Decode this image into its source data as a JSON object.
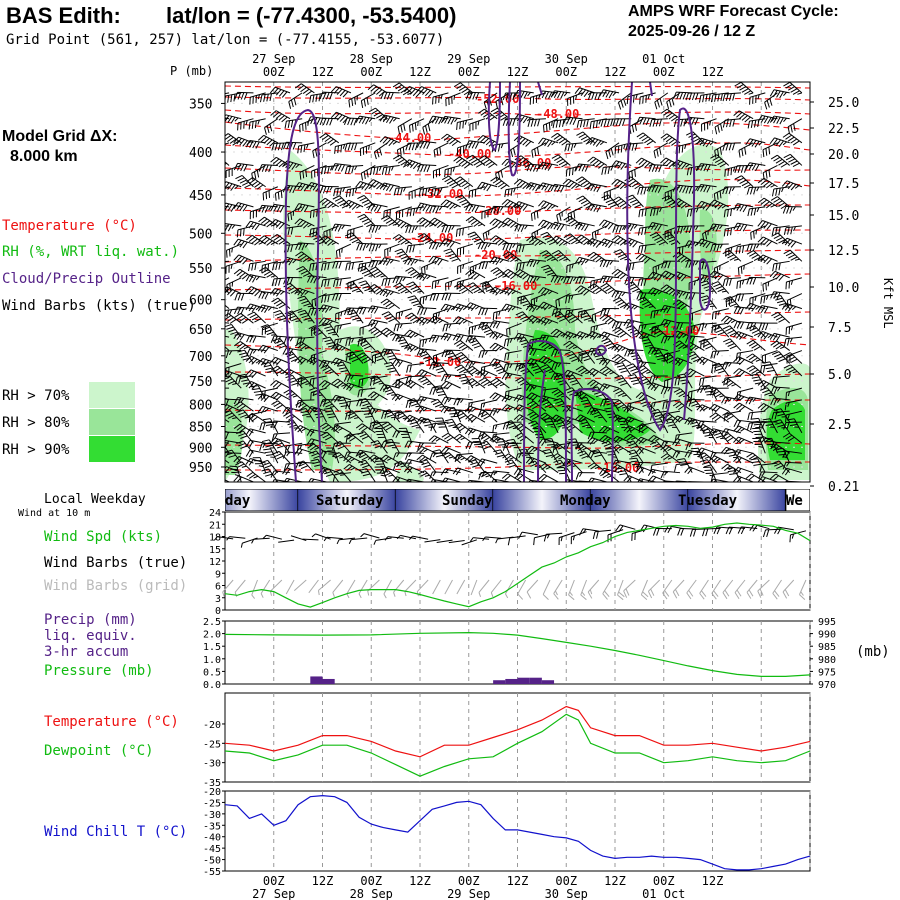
{
  "header": {
    "station": "BAS Edith:",
    "latlon": "lat/lon = (-77.4300, -53.5400)",
    "grid_point": "Grid Point (561, 257) lat/lon = (-77.4155, -53.6077)",
    "forecast_title": "AMPS WRF Forecast Cycle:",
    "forecast_cycle": "2025-09-26 / 12  Z"
  },
  "left_panel": {
    "model_grid_label": "Model Grid ΔX:",
    "model_grid_value": "8.000 km",
    "legend_temperature": "Temperature (°C)",
    "legend_rh": "RH (%, WRT liq. wat.)",
    "legend_cloud": "Cloud/Precip Outline",
    "legend_wind": "Wind Barbs (kts) (true)",
    "rh_levels": [
      "RH > 70%",
      "RH > 80%",
      "RH > 90%"
    ],
    "local_weekday": "Local Weekday",
    "wind_10m": "Wind at 10 m",
    "wind_spd": "Wind Spd (kts)",
    "wind_barbs_true": "Wind Barbs (true)",
    "wind_barbs_grid": "Wind Barbs (grid)",
    "precip": [
      "Precip (mm)",
      "liq. equiv.",
      "3-hr accum"
    ],
    "pressure": "Pressure (mb)",
    "temperature": "Temperature (°C)",
    "dewpoint": "Dewpoint (°C)",
    "wind_chill": "Wind Chill T (°C)"
  },
  "colors": {
    "temperature": "#ee1111",
    "rh_label": "#11bb11",
    "cloud": "#552288",
    "rh70": "#ccf5cc",
    "rh80": "#99e599",
    "rh90": "#33dd33",
    "wind_chill": "#1111cc",
    "weekday_band": "#8088c8"
  },
  "time_axis": {
    "hour_labels": [
      "00Z",
      "12Z",
      "00Z",
      "12Z",
      "00Z",
      "12Z",
      "00Z",
      "12Z",
      "00Z",
      "12Z"
    ],
    "date_labels": [
      "27 Sep",
      "28 Sep",
      "29 Sep",
      "30 Sep",
      "01 Oct"
    ]
  },
  "right_panel": {
    "kft_label": "Kft MSL",
    "pressure_unit": "(mb)"
  },
  "chart_data": [
    {
      "type": "heatmap",
      "name": "cross-section",
      "x_unit": "forecast hour",
      "x_range": [
        -12,
        132
      ],
      "y_axis_label": "P (mb)",
      "y_ticks": [
        "350",
        "400",
        "450",
        "500",
        "550",
        "600",
        "650",
        "700",
        "750",
        "800",
        "850",
        "900",
        "950"
      ],
      "right_ticks": [
        "25.0",
        "22.5",
        "20.0",
        "17.5",
        "15.0",
        "12.5",
        "10.0",
        "7.5",
        "5.0",
        "2.5",
        "0.21"
      ],
      "temperature_isotherms": [
        -52,
        -48,
        -44,
        -40,
        -36,
        -32,
        -28,
        -24,
        -20,
        -16,
        -12,
        -16
      ],
      "isotherm_labels": [
        "-52.00",
        "-48.00",
        "-44.00",
        "-40.00",
        "-36.00",
        "-32.00",
        "-28.00",
        "-24.00",
        "-20.00",
        "-16.00",
        "-12.00",
        "-12.00",
        "-16.00"
      ]
    },
    {
      "type": "bar",
      "name": "weekday",
      "categories": [
        "day",
        "Saturday",
        "Sunday",
        "Monday",
        "Tuesday",
        "We"
      ]
    },
    {
      "type": "line",
      "name": "wind speed",
      "ylabel": "Wind Spd (kts)",
      "ylim": [
        0,
        24
      ],
      "y_ticks": [
        "24",
        "21",
        "18",
        "15",
        "12",
        "9",
        "6",
        "3",
        "0"
      ],
      "x": [
        -12,
        -9,
        -6,
        -3,
        0,
        3,
        6,
        9,
        12,
        15,
        18,
        21,
        24,
        27,
        30,
        33,
        36,
        39,
        42,
        45,
        48,
        51,
        54,
        57,
        60,
        63,
        66,
        69,
        72,
        75,
        78,
        81,
        84,
        87,
        90,
        93,
        96,
        99,
        102,
        105,
        108,
        111,
        114,
        117,
        120,
        123,
        126,
        129,
        132
      ],
      "values": [
        4,
        3.6,
        4.5,
        5,
        4.5,
        3,
        1.5,
        0.7,
        1.8,
        3,
        4,
        4.8,
        5,
        5,
        5,
        4.5,
        3.8,
        3,
        2.2,
        1.5,
        0.8,
        2,
        3,
        4.5,
        6.5,
        8.5,
        10.5,
        11.5,
        13,
        14,
        15.5,
        16.5,
        18,
        19,
        19.5,
        20,
        20.5,
        20.7,
        20.5,
        20,
        20.3,
        21,
        21.3,
        21,
        20.8,
        20.5,
        19.5,
        18.8,
        17
      ]
    },
    {
      "type": "bar",
      "name": "precipitation",
      "ylabel": "Precip (mm)",
      "ylim": [
        0,
        2.5
      ],
      "y_ticks": [
        "2.5",
        "2.0",
        "1.5",
        "1.0",
        "0.5",
        "0.0"
      ],
      "bars": [
        {
          "x0": 9,
          "x1": 12,
          "value": 0.3
        },
        {
          "x0": 12,
          "x1": 15,
          "value": 0.2
        },
        {
          "x0": 54,
          "x1": 57,
          "value": 0.15
        },
        {
          "x0": 57,
          "x1": 60,
          "value": 0.2
        },
        {
          "x0": 60,
          "x1": 63,
          "value": 0.25
        },
        {
          "x0": 63,
          "x1": 66,
          "value": 0.25
        },
        {
          "x0": 66,
          "x1": 69,
          "value": 0.15
        }
      ]
    },
    {
      "type": "line",
      "name": "pressure",
      "ylabel": "Pressure (mb)",
      "ylim": [
        970,
        995
      ],
      "y_ticks": [
        "995",
        "990",
        "985",
        "980",
        "975",
        "970"
      ],
      "x": [
        -12,
        0,
        12,
        24,
        36,
        48,
        54,
        60,
        66,
        72,
        78,
        84,
        90,
        96,
        102,
        108,
        114,
        120,
        126,
        132
      ],
      "values": [
        989.7,
        989.5,
        989.4,
        989.5,
        990.1,
        990.4,
        990.1,
        989.4,
        988,
        986.5,
        985,
        983.3,
        981.4,
        979.3,
        977.2,
        975.3,
        973.8,
        973,
        973,
        973.6
      ]
    },
    {
      "type": "line",
      "name": "temperature and dewpoint",
      "ylim": [
        -35,
        -12
      ],
      "y_ticks": [
        "-20",
        "-25",
        "-30",
        "-35"
      ],
      "series": [
        {
          "name": "Temperature (°C)",
          "x": [
            -12,
            -6,
            0,
            6,
            12,
            18,
            24,
            30,
            36,
            42,
            48,
            54,
            60,
            66,
            72,
            75,
            78,
            84,
            90,
            96,
            102,
            108,
            114,
            120,
            126,
            132
          ],
          "values": [
            -25,
            -25.5,
            -27,
            -25.5,
            -23,
            -23,
            -24.5,
            -27,
            -28.5,
            -25.5,
            -25.5,
            -23.5,
            -21.5,
            -19,
            -15.5,
            -16.5,
            -21,
            -23,
            -23,
            -25.5,
            -25.5,
            -25,
            -26,
            -27,
            -26,
            -24.5
          ]
        },
        {
          "name": "Dewpoint (°C)",
          "x": [
            -12,
            -6,
            0,
            6,
            12,
            18,
            24,
            30,
            36,
            42,
            48,
            54,
            60,
            66,
            72,
            75,
            78,
            84,
            90,
            96,
            102,
            108,
            114,
            120,
            126,
            132
          ],
          "values": [
            -27,
            -27.5,
            -29.5,
            -28,
            -25.5,
            -25.5,
            -27.5,
            -30.5,
            -33.5,
            -31,
            -29,
            -28.5,
            -25,
            -22,
            -17.5,
            -19,
            -25,
            -27.5,
            -27.5,
            -30,
            -29.5,
            -28.5,
            -29.5,
            -30,
            -29.5,
            -27
          ]
        }
      ]
    },
    {
      "type": "line",
      "name": "wind chill",
      "ylabel": "Wind Chill T (°C)",
      "ylim": [
        -55,
        -20
      ],
      "y_ticks": [
        "-20",
        "-25",
        "-30",
        "-35",
        "-40",
        "-45",
        "-50",
        "-55"
      ],
      "x": [
        -12,
        -9,
        -6,
        -3,
        0,
        3,
        6,
        9,
        12,
        15,
        18,
        21,
        24,
        27,
        30,
        33,
        36,
        39,
        42,
        45,
        48,
        51,
        54,
        57,
        60,
        63,
        66,
        69,
        72,
        75,
        78,
        81,
        84,
        87,
        90,
        93,
        96,
        99,
        102,
        105,
        108,
        111,
        114,
        117,
        120,
        123,
        126,
        129,
        132
      ],
      "values": [
        -26,
        -26.5,
        -32,
        -30,
        -35,
        -33,
        -26,
        -22.5,
        -22,
        -22.5,
        -25,
        -31.5,
        -34.5,
        -36,
        -37,
        -38,
        -33,
        -28,
        -26.5,
        -25,
        -24.5,
        -26,
        -32,
        -37,
        -37,
        -38,
        -39,
        -40,
        -40.5,
        -42,
        -46,
        -48.5,
        -49.5,
        -49,
        -49,
        -48.5,
        -49,
        -49,
        -49.5,
        -50,
        -52,
        -54,
        -54.5,
        -54.5,
        -54,
        -53,
        -52,
        -50,
        -48.5
      ]
    }
  ]
}
